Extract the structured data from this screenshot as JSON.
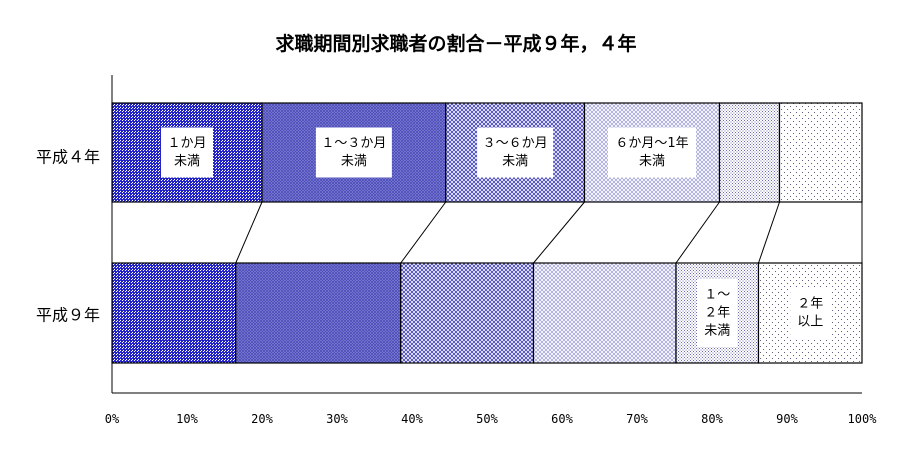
{
  "chart_data": {
    "type": "bar",
    "orientation": "horizontal",
    "stacked": "100%",
    "title": "求職期間別求職者の割合－平成９年，４年",
    "categories": [
      "平成４年",
      "平成９年"
    ],
    "series": [
      {
        "name": "１か月\n未満",
        "values": [
          20,
          16.5
        ],
        "color": "#2b2bd6",
        "pattern": "dense-dots"
      },
      {
        "name": "１～３か月\n未満",
        "values": [
          24.5,
          22
        ],
        "color": "#6060c8",
        "pattern": "fine-grid"
      },
      {
        "name": "３～６か月\n未満",
        "values": [
          18.5,
          17.7
        ],
        "color": "#7a7ad6",
        "pattern": "crosshatch"
      },
      {
        "name": "６か月～1年\n未満",
        "values": [
          18,
          19
        ],
        "color": "#a8a8e0",
        "pattern": "light-crosshatch"
      },
      {
        "name": "１～\n２年\n未満",
        "values": [
          8,
          11
        ],
        "color": "#9090c0",
        "pattern": "sparse-dots"
      },
      {
        "name": "２年\n以上",
        "values": [
          11,
          13.8
        ],
        "color": "#8080a0",
        "pattern": "very-sparse-dots"
      }
    ],
    "label_row": [
      0,
      0,
      0,
      0,
      1,
      1
    ],
    "xlim": [
      0,
      100
    ],
    "xticks": [
      "0%",
      "10%",
      "20%",
      "30%",
      "40%",
      "50%",
      "60%",
      "70%",
      "80%",
      "90%",
      "100%"
    ],
    "connector_lines": true,
    "legend": "none"
  }
}
